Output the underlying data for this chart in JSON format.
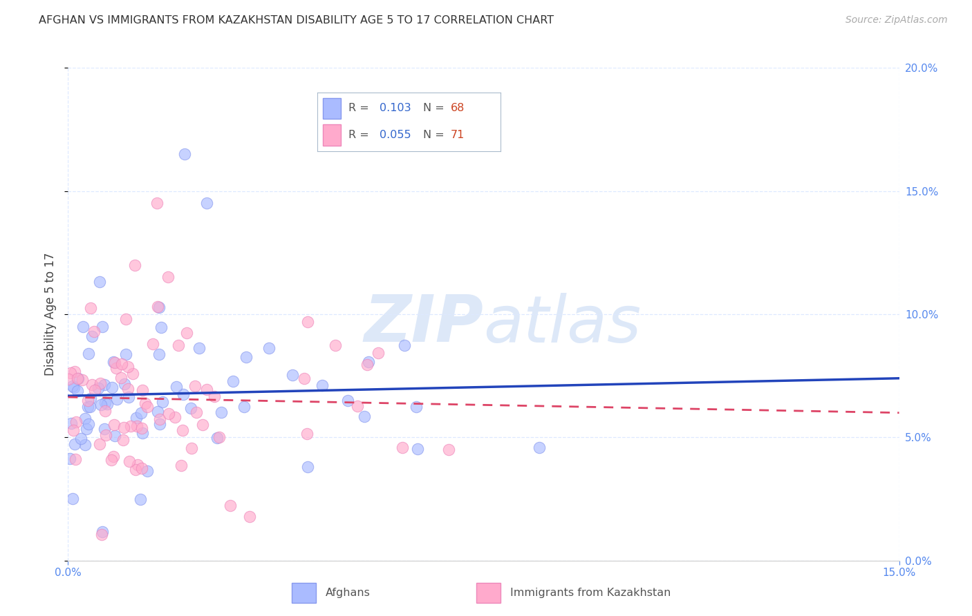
{
  "title": "AFGHAN VS IMMIGRANTS FROM KAZAKHSTAN DISABILITY AGE 5 TO 17 CORRELATION CHART",
  "source": "Source: ZipAtlas.com",
  "xmin": 0.0,
  "xmax": 0.15,
  "ymin": 0.0,
  "ymax": 0.2,
  "ylabel": "Disability Age 5 to 17",
  "afghans_R": 0.103,
  "afghans_N": 68,
  "kaz_R": 0.055,
  "kaz_N": 71,
  "afghans_color": "#aabbff",
  "afghans_edge": "#8899ee",
  "kaz_color": "#ffaacc",
  "kaz_edge": "#ee88bb",
  "afghans_line_color": "#2244bb",
  "kaz_line_color": "#dd4466",
  "tick_color": "#5588ee",
  "grid_color": "#dde8ff",
  "title_color": "#333333",
  "source_color": "#aaaaaa",
  "watermark_color": "#dde8f8",
  "legend_r_color": "#3366cc",
  "legend_n_color": "#cc4422",
  "legend_border": "#aabbcc"
}
